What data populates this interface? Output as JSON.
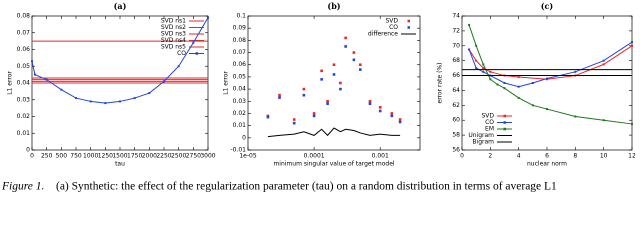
{
  "chart_data": [
    {
      "type": "line",
      "title": "(a)",
      "xlabel": "tau",
      "ylabel": "L1 error",
      "xlim": [
        0,
        3000
      ],
      "ylim": [
        0,
        0.08
      ],
      "xticks": [
        0,
        250,
        500,
        750,
        1000,
        1250,
        1500,
        1750,
        2000,
        2250,
        2500,
        2750,
        3000
      ],
      "yticks": [
        0,
        0.01,
        0.02,
        0.03,
        0.04,
        0.05,
        0.06,
        0.07,
        0.08
      ],
      "legend": "upper right",
      "series": [
        {
          "name": "SVD ns1",
          "color": "#e8262a",
          "mode": "lines",
          "x": [
            0,
            3000
          ],
          "values": [
            0.065,
            0.065
          ]
        },
        {
          "name": "SVD ns2",
          "color": "#e8262a",
          "mode": "lines",
          "x": [
            0,
            3000
          ],
          "values": [
            0.043,
            0.043
          ]
        },
        {
          "name": "SVD ns3",
          "color": "#e8262a",
          "mode": "lines",
          "x": [
            0,
            3000
          ],
          "values": [
            0.042,
            0.042
          ]
        },
        {
          "name": "SVD ns4",
          "color": "#e8262a",
          "mode": "lines",
          "x": [
            0,
            3000
          ],
          "values": [
            0.041,
            0.041
          ]
        },
        {
          "name": "SVD ns5",
          "color": "#e8262a",
          "mode": "lines",
          "x": [
            0,
            3000
          ],
          "values": [
            0.04,
            0.04
          ]
        },
        {
          "name": "CO",
          "color": "#2345d6",
          "mode": "lines+markers",
          "x": [
            0,
            50,
            250,
            500,
            750,
            1000,
            1250,
            1500,
            1750,
            2000,
            2250,
            2500,
            2750,
            3000
          ],
          "values": [
            0.053,
            0.045,
            0.042,
            0.036,
            0.031,
            0.029,
            0.028,
            0.029,
            0.031,
            0.034,
            0.041,
            0.05,
            0.064,
            0.079
          ]
        }
      ]
    },
    {
      "type": "line",
      "title": "(b)",
      "xlabel": "minimum singular value of target model",
      "ylabel": "L1 error",
      "xscale": "log",
      "xlim": [
        1e-05,
        0.004
      ],
      "ylim": [
        -0.01,
        0.1
      ],
      "xticks": [
        {
          "value": 1e-05,
          "label": "1e-05"
        },
        0.0001,
        0.001
      ],
      "yticks": [
        -0.01,
        0,
        0.01,
        0.02,
        0.03,
        0.04,
        0.05,
        0.06,
        0.07,
        0.08,
        0.09,
        0.1
      ],
      "legend": "upper right",
      "series": [
        {
          "name": "SVD",
          "color": "#e8262a",
          "mode": "markers",
          "x": [
            2e-05,
            3e-05,
            5e-05,
            7e-05,
            0.0001,
            0.00013,
            0.00016,
            0.0002,
            0.00025,
            0.0003,
            0.0004,
            0.0005,
            0.0007,
            0.001,
            0.0015,
            0.002
          ],
          "values": [
            0.018,
            0.035,
            0.015,
            0.04,
            0.02,
            0.055,
            0.03,
            0.06,
            0.045,
            0.082,
            0.07,
            0.06,
            0.03,
            0.025,
            0.02,
            0.015
          ]
        },
        {
          "name": "CO",
          "color": "#2345d6",
          "mode": "markers",
          "x": [
            2e-05,
            3e-05,
            5e-05,
            7e-05,
            0.0001,
            0.00013,
            0.00016,
            0.0002,
            0.00025,
            0.0003,
            0.0004,
            0.0005,
            0.0007,
            0.001,
            0.0015,
            0.002
          ],
          "values": [
            0.017,
            0.033,
            0.012,
            0.035,
            0.018,
            0.048,
            0.028,
            0.052,
            0.04,
            0.075,
            0.064,
            0.056,
            0.028,
            0.022,
            0.018,
            0.013
          ]
        },
        {
          "name": "difference",
          "color": "#000000",
          "mode": "lines",
          "x": [
            2e-05,
            3e-05,
            5e-05,
            7e-05,
            0.0001,
            0.00013,
            0.00016,
            0.0002,
            0.00025,
            0.0003,
            0.0004,
            0.0005,
            0.0007,
            0.001,
            0.0015,
            0.002
          ],
          "values": [
            0.001,
            0.002,
            0.003,
            0.005,
            0.002,
            0.007,
            0.002,
            0.008,
            0.005,
            0.007,
            0.006,
            0.004,
            0.002,
            0.003,
            0.002,
            0.002
          ]
        }
      ]
    },
    {
      "type": "line",
      "title": "(c)",
      "xlabel": "nuclear norm",
      "ylabel": "error rate (%)",
      "xlim": [
        0,
        12
      ],
      "ylim": [
        56,
        74
      ],
      "xticks": [
        0,
        2,
        4,
        6,
        8,
        10,
        12
      ],
      "yticks": [
        56,
        58,
        60,
        62,
        64,
        66,
        68,
        70,
        72,
        74
      ],
      "legend": "lower left",
      "series": [
        {
          "name": "SVD",
          "color": "#e8262a",
          "mode": "lines+markers",
          "x": [
            0.5,
            1,
            1.5,
            2,
            3,
            4,
            6,
            8,
            10,
            12
          ],
          "values": [
            69.5,
            68,
            67,
            66.5,
            66,
            65.8,
            65.5,
            66,
            67.5,
            70
          ]
        },
        {
          "name": "CO",
          "color": "#2345d6",
          "mode": "lines+markers",
          "x": [
            0.5,
            1,
            1.5,
            2,
            3,
            4,
            5,
            6,
            8,
            10,
            12
          ],
          "values": [
            69.5,
            67,
            66.5,
            66,
            65,
            64.5,
            65,
            65.6,
            66.5,
            68,
            70.5
          ]
        },
        {
          "name": "EM",
          "color": "#1c7a1c",
          "mode": "lines+markers",
          "x": [
            0.5,
            1,
            1.5,
            2,
            2.5,
            3,
            4,
            5,
            6,
            8,
            10,
            12
          ],
          "values": [
            72.8,
            70,
            67.5,
            65.5,
            64.8,
            64.3,
            63,
            62,
            61.5,
            60.5,
            60,
            59.5
          ]
        },
        {
          "name": "Unigram",
          "color": "#000000",
          "mode": "lines",
          "x": [
            0,
            12
          ],
          "values": [
            66.8,
            66.8
          ]
        },
        {
          "name": "Bigram",
          "color": "#000000",
          "mode": "lines",
          "x": [
            0,
            12
          ],
          "values": [
            66,
            66
          ]
        }
      ]
    }
  ],
  "caption": {
    "label": "Figure 1.",
    "text": "(a) Synthetic: the effect of the regularization parameter (tau) on a random distribution in terms of average L1"
  }
}
